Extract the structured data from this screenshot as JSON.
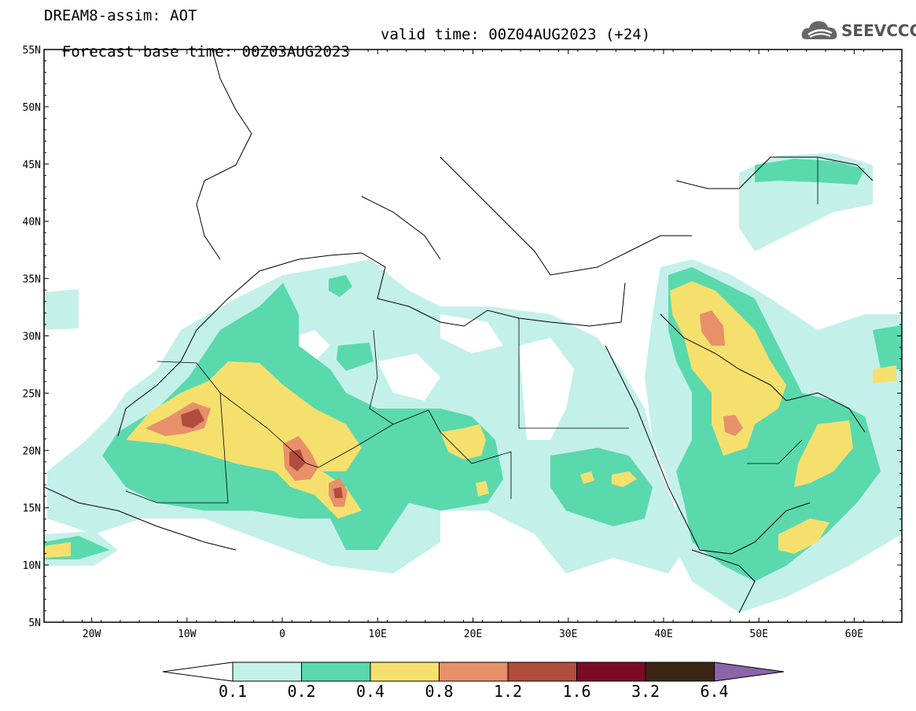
{
  "header": {
    "line1": "DREAM8-assim: AOT",
    "line2": "Forecast base time: 00Z03AUG2023",
    "valid": "valid time: 00Z04AUG2023 (+24)"
  },
  "logo": {
    "text": "SEEVCCC",
    "icon": "cloud-icon"
  },
  "map": {
    "lat_labels": [
      "55N",
      "50N",
      "45N",
      "40N",
      "35N",
      "30N",
      "25N",
      "20N",
      "15N",
      "10N",
      "5N"
    ],
    "lon_labels": [
      "20W",
      "10W",
      "0",
      "10E",
      "20E",
      "30E",
      "40E",
      "50E",
      "60E"
    ],
    "lon_range": [
      -25,
      65
    ],
    "lat_range": [
      5,
      55
    ]
  },
  "colorbar": {
    "labels": [
      "0.1",
      "0.2",
      "0.4",
      "0.8",
      "1.2",
      "1.6",
      "3.2",
      "6.4"
    ],
    "colors": [
      "#c4f0ea",
      "#5ad9ad",
      "#f5e06e",
      "#e8906a",
      "#b14d3c",
      "#7b0a26",
      "#3b2616",
      "#8c64aa"
    ]
  }
}
